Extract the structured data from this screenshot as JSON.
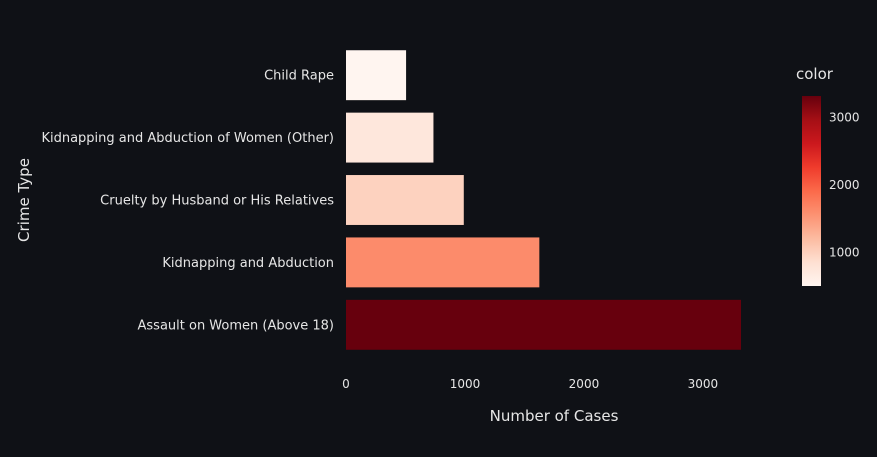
{
  "chart_data": {
    "type": "bar",
    "orientation": "horizontal",
    "categories": [
      "Assault on Women (Above 18)",
      "Kidnapping and Abduction",
      "Cruelty by Husband or His Relatives",
      "Kidnapping and Abduction of Women (Other)",
      "Child Rape"
    ],
    "values": [
      3320,
      1625,
      990,
      735,
      505
    ],
    "xlabel": "Number of Cases",
    "ylabel": "Crime Type",
    "xlim": [
      0,
      3320
    ],
    "xticks": [
      0,
      1000,
      2000,
      3000
    ],
    "grid": false,
    "colorbar": {
      "title": "color",
      "range": [
        505,
        3320
      ],
      "ticks": [
        1000,
        2000,
        3000
      ],
      "placement": "right",
      "colorscale": [
        "#fff5f0",
        "#fee0d2",
        "#fcbba1",
        "#fc9272",
        "#fb6a4a",
        "#ef3b2c",
        "#cb181d",
        "#a50f15",
        "#67000d"
      ]
    }
  },
  "colors": {
    "background": "#0f1116",
    "text": "#e6e6e6"
  }
}
